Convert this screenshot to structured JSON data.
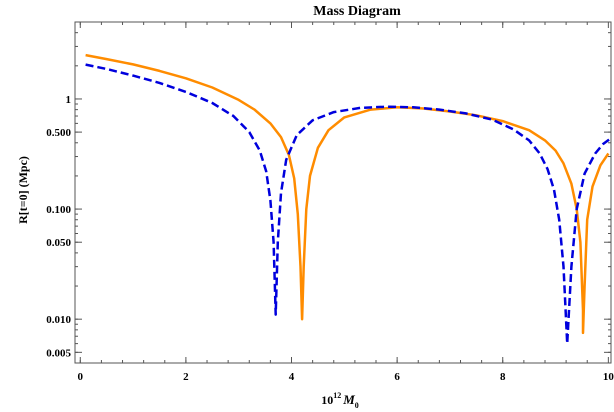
{
  "chart_data": {
    "type": "line",
    "title": "Mass Diagram",
    "xlabel": {
      "base": "10",
      "sup": "12",
      "var": "M",
      "sub": "0"
    },
    "ylabel": "R[t=0] (Mpc)",
    "xlim": [
      -0.1,
      10.05
    ],
    "ylim": [
      0.004,
      5.0
    ],
    "yscale": "log",
    "grid": false,
    "x_ticks": [
      {
        "value": 0,
        "label": "0"
      },
      {
        "value": 2,
        "label": "2"
      },
      {
        "value": 4,
        "label": "4"
      },
      {
        "value": 6,
        "label": "6"
      },
      {
        "value": 8,
        "label": "8"
      },
      {
        "value": 10,
        "label": "10"
      }
    ],
    "y_ticks": [
      {
        "value": 1,
        "label": "1"
      },
      {
        "value": 0.5,
        "label": "0.500"
      },
      {
        "value": 0.1,
        "label": "0.100"
      },
      {
        "value": 0.05,
        "label": "0.050"
      },
      {
        "value": 0.01,
        "label": "0.010"
      },
      {
        "value": 0.005,
        "label": "0.005"
      }
    ],
    "series": [
      {
        "color": "#ff8c00",
        "dash": "solid",
        "points": [
          [
            0.1,
            2.5
          ],
          [
            0.5,
            2.3
          ],
          [
            1.0,
            2.06
          ],
          [
            1.5,
            1.8
          ],
          [
            2.0,
            1.54
          ],
          [
            2.5,
            1.27
          ],
          [
            3.0,
            0.98
          ],
          [
            3.3,
            0.8
          ],
          [
            3.6,
            0.6
          ],
          [
            3.8,
            0.45
          ],
          [
            3.95,
            0.31
          ],
          [
            4.05,
            0.19
          ],
          [
            4.12,
            0.09
          ],
          [
            4.17,
            0.03
          ],
          [
            4.2,
            0.01
          ],
          [
            4.23,
            0.03
          ],
          [
            4.28,
            0.1
          ],
          [
            4.35,
            0.2
          ],
          [
            4.5,
            0.36
          ],
          [
            4.7,
            0.52
          ],
          [
            5.0,
            0.68
          ],
          [
            5.5,
            0.8
          ],
          [
            6.0,
            0.84
          ],
          [
            6.5,
            0.82
          ],
          [
            7.0,
            0.77
          ],
          [
            7.5,
            0.71
          ],
          [
            8.0,
            0.63
          ],
          [
            8.5,
            0.52
          ],
          [
            8.8,
            0.42
          ],
          [
            9.0,
            0.34
          ],
          [
            9.15,
            0.26
          ],
          [
            9.3,
            0.17
          ],
          [
            9.4,
            0.1
          ],
          [
            9.47,
            0.05
          ],
          [
            9.52,
            0.012
          ],
          [
            9.52,
            0.0075
          ],
          [
            9.55,
            0.02
          ],
          [
            9.6,
            0.08
          ],
          [
            9.7,
            0.16
          ],
          [
            9.85,
            0.25
          ],
          [
            10.0,
            0.32
          ]
        ]
      },
      {
        "color": "#0000dd",
        "dash": "dashed",
        "points": [
          [
            0.1,
            2.05
          ],
          [
            0.5,
            1.87
          ],
          [
            1.0,
            1.63
          ],
          [
            1.5,
            1.4
          ],
          [
            2.0,
            1.16
          ],
          [
            2.5,
            0.92
          ],
          [
            2.9,
            0.7
          ],
          [
            3.2,
            0.5
          ],
          [
            3.4,
            0.34
          ],
          [
            3.52,
            0.22
          ],
          [
            3.6,
            0.12
          ],
          [
            3.66,
            0.05
          ],
          [
            3.7,
            0.011
          ],
          [
            3.74,
            0.05
          ],
          [
            3.8,
            0.14
          ],
          [
            3.9,
            0.28
          ],
          [
            4.1,
            0.47
          ],
          [
            4.4,
            0.64
          ],
          [
            4.8,
            0.76
          ],
          [
            5.3,
            0.83
          ],
          [
            5.8,
            0.85
          ],
          [
            6.3,
            0.84
          ],
          [
            6.8,
            0.8
          ],
          [
            7.3,
            0.74
          ],
          [
            7.8,
            0.65
          ],
          [
            8.2,
            0.53
          ],
          [
            8.5,
            0.42
          ],
          [
            8.7,
            0.32
          ],
          [
            8.85,
            0.23
          ],
          [
            8.97,
            0.15
          ],
          [
            9.07,
            0.08
          ],
          [
            9.15,
            0.03
          ],
          [
            9.22,
            0.006
          ],
          [
            9.3,
            0.03
          ],
          [
            9.4,
            0.1
          ],
          [
            9.55,
            0.21
          ],
          [
            9.75,
            0.32
          ],
          [
            9.9,
            0.39
          ],
          [
            10.05,
            0.44
          ]
        ]
      }
    ]
  }
}
